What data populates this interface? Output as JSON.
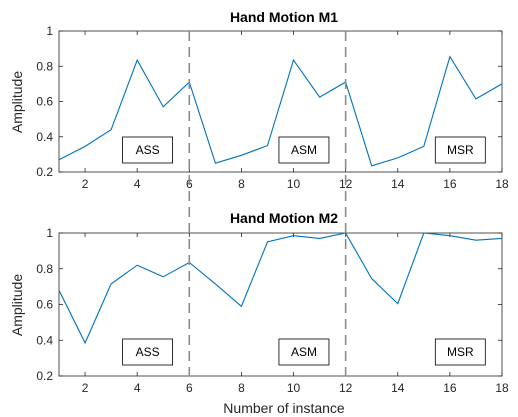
{
  "chart_data": [
    {
      "type": "line",
      "title": "Hand Motion M1",
      "xlabel": "",
      "ylabel": "Amplitude",
      "xlim": [
        1,
        18
      ],
      "ylim": [
        0.2,
        1
      ],
      "xticks": [
        2,
        4,
        6,
        8,
        10,
        12,
        14,
        16,
        18
      ],
      "yticks": [
        0.2,
        0.4,
        0.6,
        0.8,
        1
      ],
      "ytick_labels": [
        "0.2",
        "0.4",
        "0.6",
        "0.8",
        "1"
      ],
      "color": "#0072bd",
      "x": [
        1,
        2,
        3,
        4,
        5,
        6,
        7,
        8,
        9,
        10,
        11,
        12,
        13,
        14,
        15,
        16,
        17,
        18
      ],
      "y": [
        0.27,
        0.345,
        0.44,
        0.835,
        0.57,
        0.71,
        0.25,
        0.295,
        0.35,
        0.835,
        0.625,
        0.71,
        0.235,
        0.28,
        0.345,
        0.855,
        0.615,
        0.7
      ],
      "vlines": [
        6,
        12
      ],
      "annotations": [
        {
          "text": "ASS",
          "x": 4.4
        },
        {
          "text": "ASM",
          "x": 10.4
        },
        {
          "text": "MSR",
          "x": 16.4
        }
      ]
    },
    {
      "type": "line",
      "title": "Hand Motion M2",
      "xlabel": "Number of instance",
      "ylabel": "Amplitude",
      "xlim": [
        1,
        18
      ],
      "ylim": [
        0.2,
        1
      ],
      "xticks": [
        2,
        4,
        6,
        8,
        10,
        12,
        14,
        16,
        18
      ],
      "yticks": [
        0.2,
        0.4,
        0.6,
        0.8,
        1
      ],
      "ytick_labels": [
        "0.2",
        "0.4",
        "0.6",
        "0.8",
        "1"
      ],
      "color": "#0072bd",
      "x": [
        1,
        2,
        3,
        4,
        5,
        6,
        7,
        8,
        9,
        10,
        11,
        12,
        13,
        14,
        15,
        16,
        17,
        18
      ],
      "y": [
        0.68,
        0.385,
        0.715,
        0.82,
        0.755,
        0.835,
        0.715,
        0.59,
        0.95,
        0.985,
        0.97,
        1.0,
        0.745,
        0.605,
        1.0,
        0.985,
        0.96,
        0.97
      ],
      "vlines": [
        6,
        12
      ],
      "annotations": [
        {
          "text": "ASS",
          "x": 4.4
        },
        {
          "text": "ASM",
          "x": 10.4
        },
        {
          "text": "MSR",
          "x": 16.4
        }
      ]
    }
  ]
}
